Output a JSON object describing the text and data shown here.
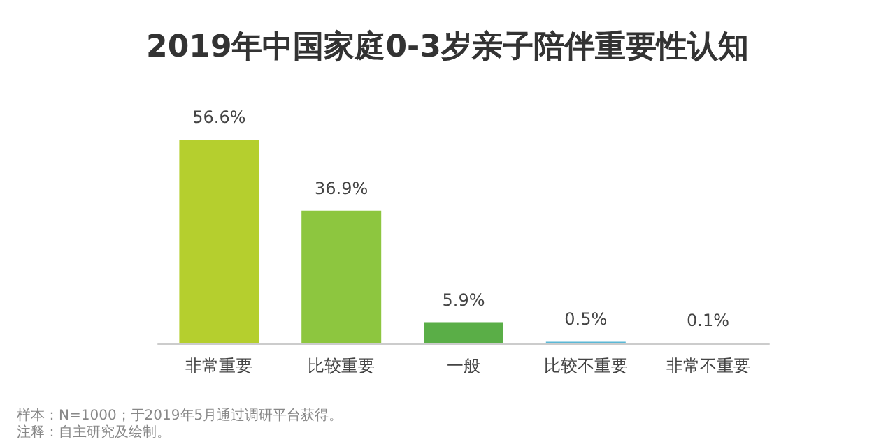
{
  "chart_data": {
    "type": "bar",
    "title": "2019年中国家庭0-3岁亲子陪伴重要性认知",
    "categories": [
      "非常重要",
      "比较重要",
      "一般",
      "比较不重要",
      "非常不重要"
    ],
    "values": [
      56.6,
      36.9,
      5.9,
      0.5,
      0.1
    ],
    "value_labels": [
      "56.6%",
      "36.9%",
      "5.9%",
      "0.5%",
      "0.1%"
    ],
    "colors": [
      "#b5cf2e",
      "#8dc63f",
      "#5aae47",
      "#5bb8d6",
      "#a8bcc4"
    ],
    "annotations": [
      "样本：N=1000；于2019年5月通过调研平台获得。",
      "注释：自主研究及绘制。"
    ]
  }
}
